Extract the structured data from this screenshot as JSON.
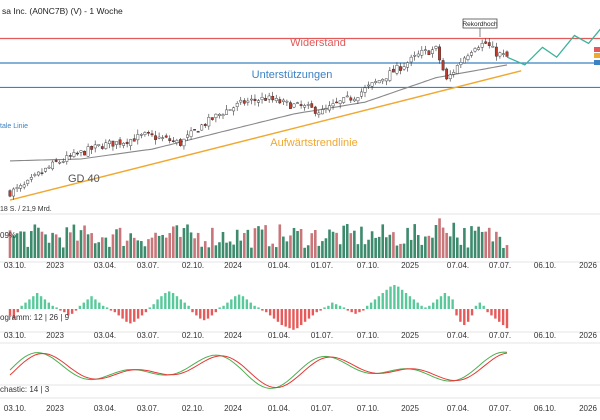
{
  "header": {
    "title": "sa Inc. (A0NC7B) (V) - 1 Woche"
  },
  "annotations": {
    "widerstand": "Widerstand",
    "unterstuetzungen": "Unterstützungen",
    "aufwaertstrendlinie": "Aufwärtstrendlinie",
    "gd40": "GD 40",
    "rekordhoch": "Rekordhoch",
    "horizontale_linie": "tale Linie"
  },
  "panels": {
    "volume_label": "09%",
    "volume_left_text": "18 S. / 21,9 Mrd.",
    "macd_label": "ogramm: 12 | 26 | 9",
    "stoch_label": "chastic: 14 | 3"
  },
  "colors": {
    "up": "#2e7d5e",
    "down": "#c0392b",
    "volume_up": "#3d8a6d",
    "volume_down": "#c9767a",
    "macd_pos": "#59c99b",
    "macd_neg": "#e65a5a",
    "resistance": "#e05a5a",
    "support": "#3b82c4",
    "trend": "#f0a830",
    "ma": "#888888",
    "projection": "#3bb39a"
  },
  "chart_data": [
    {
      "type": "candlestick",
      "title": "sa Inc. (A0NC7B) (V) - 1 Woche",
      "x_ticks": [
        "03.10.",
        "2023",
        "03.04.",
        "03.07.",
        "02.10.",
        "2024",
        "01.04.",
        "01.07.",
        "07.10.",
        "2025",
        "07.04.",
        "07.07.",
        "06.10.",
        "2026"
      ],
      "levels": {
        "resistance": 345,
        "support_upper": 320,
        "support_lower": 295
      },
      "price_range": [
        175,
        370
      ],
      "close_path": [
        {
          "w": 0,
          "c": 188
        },
        {
          "w": 4,
          "c": 194
        },
        {
          "w": 8,
          "c": 206
        },
        {
          "w": 13,
          "c": 218
        },
        {
          "w": 20,
          "c": 228
        },
        {
          "w": 26,
          "c": 236
        },
        {
          "w": 32,
          "c": 240
        },
        {
          "w": 38,
          "c": 246
        },
        {
          "w": 44,
          "c": 242
        },
        {
          "w": 48,
          "c": 238
        },
        {
          "w": 54,
          "c": 256
        },
        {
          "w": 60,
          "c": 270
        },
        {
          "w": 66,
          "c": 280
        },
        {
          "w": 72,
          "c": 284
        },
        {
          "w": 78,
          "c": 278
        },
        {
          "w": 84,
          "c": 274
        },
        {
          "w": 88,
          "c": 270
        },
        {
          "w": 92,
          "c": 278
        },
        {
          "w": 97,
          "c": 286
        },
        {
          "w": 103,
          "c": 300
        },
        {
          "w": 110,
          "c": 316
        },
        {
          "w": 116,
          "c": 330
        },
        {
          "w": 120,
          "c": 334
        },
        {
          "w": 123,
          "c": 302
        },
        {
          "w": 127,
          "c": 322
        },
        {
          "w": 131,
          "c": 338
        },
        {
          "w": 134,
          "c": 340
        },
        {
          "w": 137,
          "c": 330
        },
        {
          "w": 140,
          "c": 326
        }
      ],
      "gd40_path": [
        {
          "w": 0,
          "v": 220
        },
        {
          "w": 20,
          "v": 222
        },
        {
          "w": 40,
          "v": 232
        },
        {
          "w": 60,
          "v": 250
        },
        {
          "w": 80,
          "v": 268
        },
        {
          "w": 100,
          "v": 280
        },
        {
          "w": 120,
          "v": 305
        },
        {
          "w": 140,
          "v": 318
        }
      ],
      "trendline": [
        {
          "w": 0,
          "v": 180
        },
        {
          "w": 144,
          "v": 312
        }
      ],
      "projection": [
        {
          "w": 140,
          "v": 326
        },
        {
          "w": 145,
          "v": 318
        },
        {
          "w": 150,
          "v": 336
        },
        {
          "w": 154,
          "v": 326
        },
        {
          "w": 159,
          "v": 348
        },
        {
          "w": 163,
          "v": 340
        },
        {
          "w": 168,
          "v": 362
        }
      ]
    },
    {
      "type": "bar",
      "name": "volume",
      "description_series": "weekly volume bars colored by candle direction"
    },
    {
      "type": "bar",
      "name": "MACD histogram",
      "params": "12 | 26 | 9",
      "values": [
        -2,
        -3,
        -1,
        1,
        2,
        3,
        4,
        5,
        4,
        3,
        2,
        1,
        0.5,
        -0.5,
        -1,
        -2,
        -1.5,
        -0.5,
        1,
        2,
        3,
        4,
        3,
        2,
        1,
        0.5,
        -0.5,
        -1,
        -2,
        -3,
        -4,
        -4.5,
        -4,
        -3,
        -2,
        -1,
        0.5,
        1.5,
        3,
        4,
        5,
        5.5,
        5,
        4,
        3,
        2,
        1,
        -1,
        -2,
        -3,
        -3.5,
        -3,
        -2,
        -1,
        0.5,
        1,
        2,
        3,
        4,
        4.5,
        4,
        3,
        2,
        1,
        0.5,
        -0.5,
        -1,
        -2,
        -3,
        -4,
        -5,
        -5.5,
        -6,
        -6.5,
        -6,
        -5,
        -4,
        -3,
        -2,
        -1,
        -0.5,
        0.5,
        1,
        2,
        1.5,
        1,
        0.5,
        -0.5,
        -1,
        -1.5,
        -1,
        -0.5,
        1,
        2,
        3,
        4,
        5,
        6,
        7,
        7.5,
        7,
        6,
        5,
        4,
        3,
        2,
        1,
        0.5,
        1,
        2,
        3,
        4,
        5,
        4,
        3,
        -2,
        -4,
        -5,
        -4,
        -2,
        1,
        2,
        1,
        -1,
        -2,
        -3,
        -4,
        -5,
        -6
      ]
    },
    {
      "type": "line",
      "name": "Stochastic",
      "params": "14 | 3",
      "ylim": [
        0,
        100
      ]
    }
  ]
}
